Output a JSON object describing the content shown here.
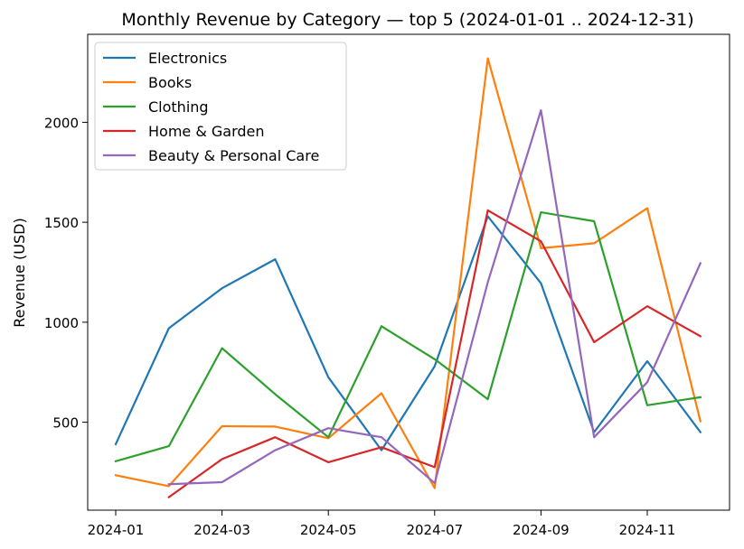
{
  "chart_data": {
    "type": "line",
    "title": "Monthly Revenue by Category — top 5 (2024-01-01 .. 2024-12-31)",
    "xlabel": "",
    "ylabel": "Revenue (USD)",
    "x": [
      "2024-01",
      "2024-02",
      "2024-03",
      "2024-04",
      "2024-05",
      "2024-06",
      "2024-07",
      "2024-08",
      "2024-09",
      "2024-10",
      "2024-11",
      "2024-12"
    ],
    "x_ticks": [
      "2024-01",
      "2024-03",
      "2024-05",
      "2024-07",
      "2024-09",
      "2024-11"
    ],
    "y_ticks": [
      500,
      1000,
      1500,
      2000
    ],
    "ylim": [
      60,
      2440
    ],
    "grid": false,
    "legend_position": "top-left",
    "series": [
      {
        "name": "Electronics",
        "color": "#1f77b4",
        "values": [
          390,
          970,
          1170,
          1315,
          725,
          360,
          780,
          1530,
          1195,
          450,
          805,
          450
        ]
      },
      {
        "name": "Books",
        "color": "#ff7f0e",
        "values": [
          235,
          180,
          480,
          478,
          420,
          645,
          170,
          2320,
          1370,
          1395,
          1570,
          505
        ]
      },
      {
        "name": "Clothing",
        "color": "#2ca02c",
        "values": [
          305,
          380,
          870,
          640,
          425,
          980,
          815,
          615,
          1550,
          1505,
          585,
          625
        ]
      },
      {
        "name": "Home & Garden",
        "color": "#d62728",
        "values": [
          null,
          125,
          315,
          425,
          300,
          375,
          275,
          1560,
          1405,
          900,
          1080,
          930
        ]
      },
      {
        "name": "Beauty & Personal Care",
        "color": "#9467bd",
        "values": [
          null,
          190,
          200,
          360,
          470,
          425,
          195,
          1200,
          2060,
          425,
          700,
          1295
        ]
      }
    ]
  }
}
